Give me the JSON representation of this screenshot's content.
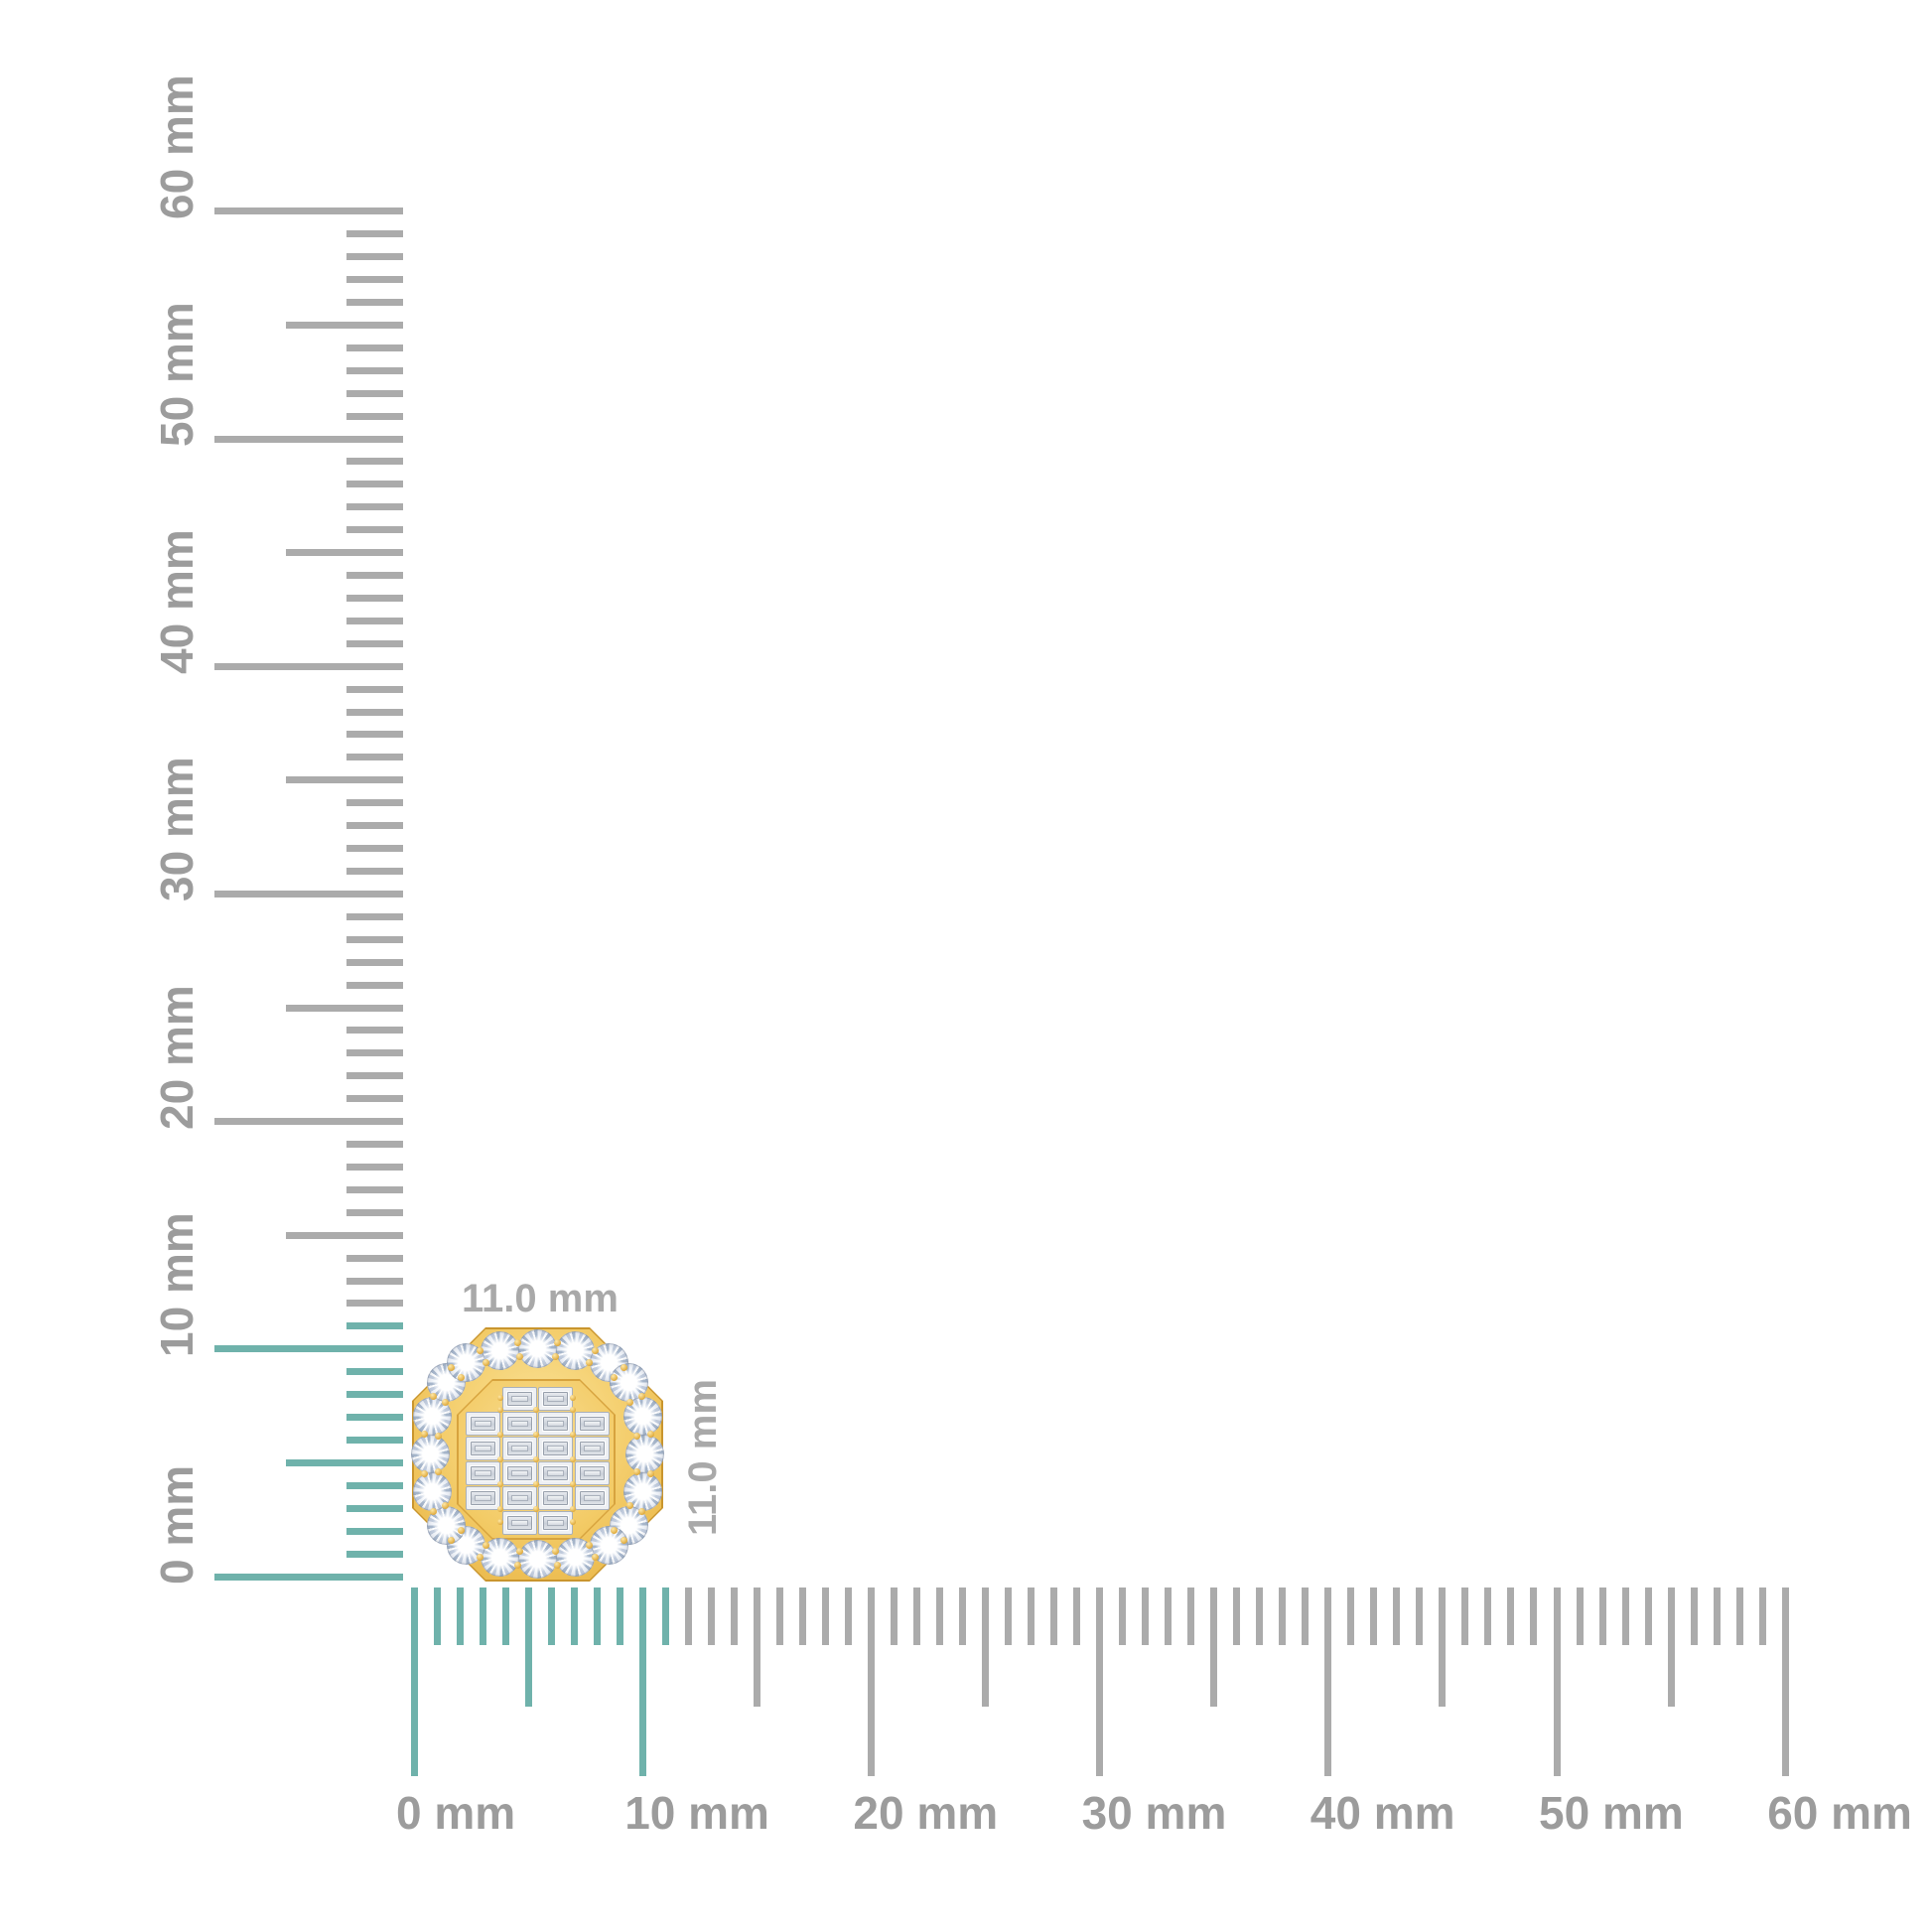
{
  "page": {
    "background": "#ffffff"
  },
  "rulers": {
    "unit": "mm",
    "min": 0,
    "max": 60,
    "major_step": 10,
    "half_step": 5,
    "minor_step": 1,
    "highlight_to_mm": 11,
    "vertical": {
      "labels": [
        "0 mm",
        "10 mm",
        "20 mm",
        "30 mm",
        "40 mm",
        "50 mm",
        "60 mm"
      ]
    },
    "horizontal": {
      "labels": [
        "0 mm",
        "10 mm",
        "20 mm",
        "30 mm",
        "40 mm",
        "50 mm",
        "60 mm"
      ]
    }
  },
  "measurement": {
    "width_label": "11.0 mm",
    "height_label": "11.0 mm"
  },
  "jewelry": {
    "shape": "octagon-stud",
    "halo_round_stones": 20,
    "baguette_rows": [
      2,
      4,
      4,
      4,
      4,
      2
    ]
  },
  "colors": {
    "tick_gray": "#ABABAB",
    "highlight_teal": "#6FB2AB",
    "label_gray": "#9C9C9C",
    "dimension_label_gray": "#A9A9A9",
    "gold_outline": "#C9952E",
    "gold_light": "#FAE49C",
    "gold_mid": "#F3CB66",
    "gold_dark": "#E6B246",
    "diamond_facet": "#C3CEDF"
  }
}
